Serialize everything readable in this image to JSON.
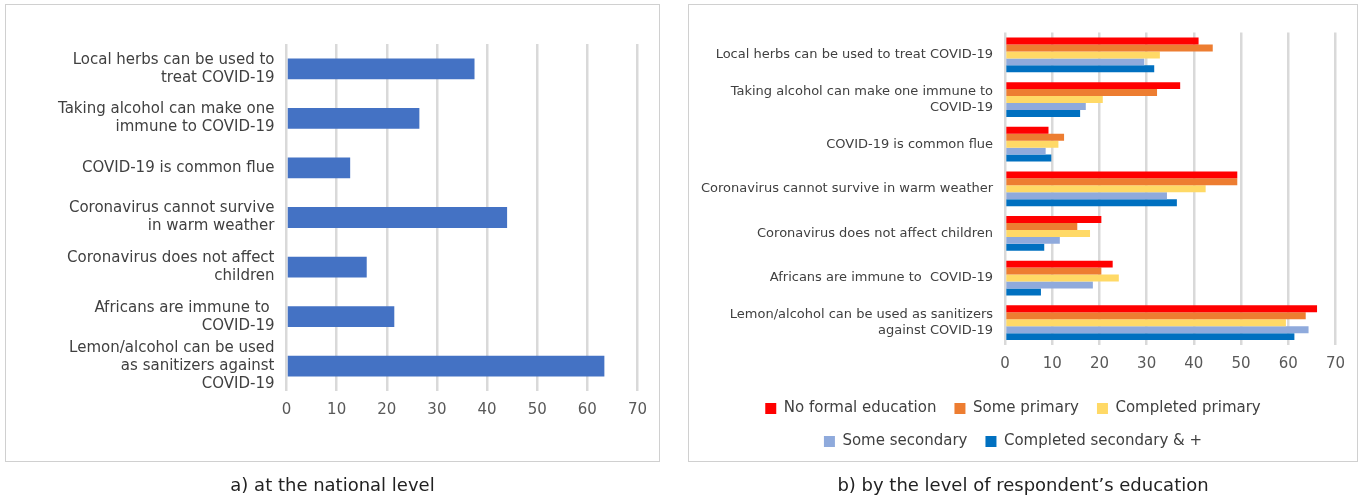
{
  "chart_data": [
    {
      "type": "bar",
      "orientation": "horizontal",
      "categories": [
        "Local herbs can be used to treat COVID-19",
        "Taking alcohol can make one immune to COVID-19",
        "COVID-19 is common flue",
        "Coronavirus cannot survive in warm weather",
        "Coronavirus does not affect children",
        "Africans are immune to  COVID-19",
        "Lemon/alcohol can be used as sanitizers against COVID-19"
      ],
      "series": [
        {
          "color": "#4472c4",
          "values": [
            37.5,
            26.5,
            12.7,
            44,
            16,
            21.5,
            63.4
          ]
        }
      ],
      "xlim": [
        0,
        70
      ],
      "xticks": [
        0,
        10,
        20,
        30,
        40,
        50,
        60,
        70
      ],
      "grid": "x",
      "legend": false,
      "annotations": [
        "a)  at the national level"
      ]
    },
    {
      "type": "bar",
      "orientation": "horizontal",
      "categories": [
        "Local herbs can be used to treat COVID-19",
        "Taking alcohol can make one immune to COVID-19",
        "COVID-19 is common flue",
        "Coronavirus cannot survive in warm weather",
        "Coronavirus does not affect children",
        "Africans are immune to  COVID-19",
        "Lemon/alcohol can be used as sanitizers against COVID-19"
      ],
      "series": [
        {
          "name": "No formal education",
          "color": "#ff0000",
          "values": [
            41,
            37.1,
            9.2,
            49.2,
            20.4,
            22.8,
            66.1
          ]
        },
        {
          "name": "Some primary",
          "color": "#ed7d31",
          "values": [
            44,
            32.2,
            12.5,
            49.2,
            15.3,
            20.4,
            63.7
          ]
        },
        {
          "name": "Completed primary",
          "color": "#ffd966",
          "values": [
            32.8,
            20.7,
            11.3,
            42.5,
            18,
            24.1,
            59.5
          ]
        },
        {
          "name": "Some secondary",
          "color": "#8faadc",
          "values": [
            29.5,
            17.1,
            8.6,
            34.3,
            11.6,
            18.6,
            64.3
          ]
        },
        {
          "name": "Completed secondary & +",
          "color": "#0070c0",
          "values": [
            31.6,
            15.9,
            9.8,
            36.4,
            8.3,
            7.6,
            61.3
          ]
        }
      ],
      "xlim": [
        0,
        70
      ],
      "xticks": [
        0,
        10,
        20,
        30,
        40,
        50,
        60,
        70
      ],
      "grid": "x",
      "legend": "bottom",
      "annotations": [
        "b) by the level of respondent’s education"
      ]
    }
  ]
}
